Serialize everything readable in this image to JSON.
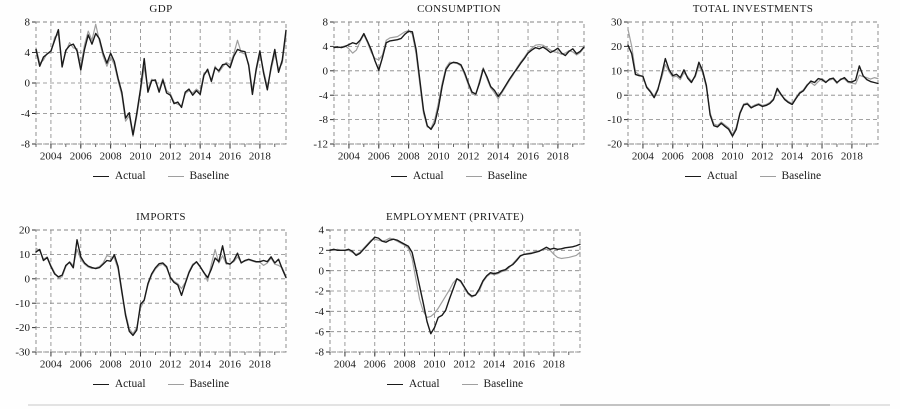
{
  "figure": {
    "background": "#fefefe",
    "accent_actual": "#1a1a1a",
    "accent_baseline": "#9f9f9f",
    "grid_style": "dashed"
  },
  "chart_data": [
    {
      "id": "gdp",
      "type": "line",
      "title": "GDP",
      "xlabel": "",
      "ylabel": "",
      "ylim": [
        -8,
        8
      ],
      "yticks": [
        8,
        4,
        0,
        -4,
        -8
      ],
      "xlim": [
        2003,
        2019.75
      ],
      "x_step_years": 0.25,
      "x_tick_years": [
        2004,
        2006,
        2008,
        2010,
        2012,
        2014,
        2016,
        2018
      ],
      "grid": "dashed",
      "legend_position": "bottom",
      "series": [
        {
          "name": "Actual",
          "color": "#1a1a1a",
          "values": [
            4.4,
            2.2,
            3.4,
            3.8,
            4.2,
            5.6,
            7.0,
            2.1,
            4.3,
            4.9,
            5.1,
            4.2,
            1.7,
            4.4,
            6.3,
            5.1,
            6.5,
            5.8,
            3.9,
            2.6,
            3.9,
            2.8,
            0.6,
            -1.2,
            -4.6,
            -3.9,
            -6.8,
            -4.0,
            -0.8,
            3.2,
            -1.2,
            0.3,
            0.4,
            -1.2,
            0.4,
            -1.3,
            -1.6,
            -2.7,
            -2.5,
            -3.2,
            -1.2,
            -0.8,
            -1.6,
            -1.0,
            -1.5,
            1.0,
            1.8,
            0.2,
            2.0,
            1.6,
            2.4,
            2.5,
            2.0,
            3.5,
            4.4,
            4.2,
            4.1,
            2.3,
            -1.5,
            1.8,
            4.2,
            1.3,
            -0.9,
            2.1,
            4.4,
            1.4,
            3.0,
            6.9
          ]
        },
        {
          "name": "Baseline",
          "color": "#9f9f9f",
          "values": [
            4.6,
            2.6,
            3.0,
            3.9,
            4.0,
            6.0,
            6.4,
            2.4,
            4.1,
            5.3,
            4.6,
            4.5,
            2.2,
            5.0,
            6.8,
            5.6,
            7.7,
            5.5,
            3.5,
            2.2,
            3.4,
            2.4,
            0.3,
            -1.6,
            -5.0,
            -4.3,
            -7.0,
            -4.4,
            -1.2,
            2.1,
            -0.8,
            0.5,
            0.2,
            -0.9,
            0.6,
            -1.0,
            -1.4,
            -2.5,
            -2.8,
            -3.0,
            -1.4,
            -1.0,
            -1.3,
            -0.8,
            -1.2,
            1.3,
            1.5,
            0.4,
            2.2,
            1.4,
            2.1,
            2.7,
            2.4,
            3.8,
            5.6,
            4.0,
            3.8,
            2.5,
            -0.9,
            1.5,
            3.8,
            1.6,
            -0.5,
            1.7,
            3.8,
            1.8,
            2.6,
            6.3
          ]
        }
      ]
    },
    {
      "id": "consumption",
      "type": "line",
      "title": "CONSUMPTION",
      "xlabel": "",
      "ylabel": "",
      "ylim": [
        -12,
        8
      ],
      "yticks": [
        8,
        4,
        0,
        -4,
        -8,
        -12
      ],
      "xlim": [
        2003,
        2019.75
      ],
      "x_step_years": 0.25,
      "x_tick_years": [
        2004,
        2006,
        2008,
        2010,
        2012,
        2014,
        2016,
        2018
      ],
      "grid": "dashed",
      "legend_position": "bottom",
      "series": [
        {
          "name": "Actual",
          "color": "#1a1a1a",
          "values": [
            3.8,
            3.9,
            3.8,
            4.0,
            4.3,
            4.6,
            4.4,
            5.0,
            6.1,
            4.8,
            3.4,
            1.6,
            0.1,
            2.2,
            4.6,
            4.9,
            5.0,
            5.1,
            5.3,
            6.0,
            6.5,
            6.4,
            3.5,
            -1.5,
            -6.5,
            -9.0,
            -9.6,
            -8.6,
            -6.0,
            -2.5,
            0.2,
            1.1,
            1.4,
            1.3,
            1.0,
            -0.3,
            -2.0,
            -3.5,
            -3.8,
            -2.0,
            0.3,
            -1.0,
            -2.6,
            -3.2,
            -4.2,
            -3.4,
            -2.4,
            -1.4,
            -0.5,
            0.3,
            1.2,
            2.0,
            2.9,
            3.4,
            3.8,
            3.6,
            3.9,
            3.5,
            3.0,
            3.3,
            3.7,
            2.9,
            2.5,
            3.2,
            3.6,
            2.8,
            3.2,
            3.9
          ]
        },
        {
          "name": "Baseline",
          "color": "#9f9f9f",
          "values": [
            3.9,
            3.8,
            3.9,
            4.1,
            3.6,
            2.9,
            3.4,
            4.8,
            5.9,
            4.6,
            3.0,
            2.0,
            1.8,
            2.6,
            5.0,
            5.4,
            5.5,
            5.6,
            6.0,
            6.4,
            6.6,
            6.0,
            2.8,
            -2.2,
            -7.0,
            -9.2,
            -9.4,
            -8.0,
            -5.2,
            -2.0,
            0.5,
            1.4,
            1.3,
            1.2,
            0.8,
            -0.6,
            -2.3,
            -3.8,
            -4.0,
            -1.6,
            0.5,
            -1.3,
            -2.8,
            -3.6,
            -4.6,
            -3.6,
            -2.6,
            -1.6,
            -0.7,
            0.5,
            1.4,
            2.2,
            3.1,
            3.7,
            4.2,
            4.3,
            4.2,
            3.8,
            3.4,
            3.1,
            3.0,
            2.7,
            2.9,
            3.3,
            3.1,
            2.6,
            3.0,
            3.8
          ]
        }
      ]
    },
    {
      "id": "total-investments",
      "type": "line",
      "title": "TOTAL INVESTMENTS",
      "xlabel": "",
      "ylabel": "",
      "ylim": [
        -20,
        30
      ],
      "yticks": [
        30,
        20,
        10,
        0,
        -10,
        -20
      ],
      "xlim": [
        2003,
        2019.75
      ],
      "x_step_years": 0.25,
      "x_tick_years": [
        2004,
        2006,
        2008,
        2010,
        2012,
        2014,
        2016,
        2018
      ],
      "grid": "dashed",
      "legend_position": "bottom",
      "series": [
        {
          "name": "Actual",
          "color": "#1a1a1a",
          "values": [
            20.5,
            17.0,
            8.5,
            8.0,
            7.8,
            3.2,
            1.4,
            -1.0,
            2.2,
            8.2,
            15.0,
            10.5,
            8.0,
            8.6,
            7.2,
            10.4,
            7.0,
            5.2,
            8.0,
            13.5,
            10.0,
            4.0,
            -8.0,
            -12.5,
            -13.0,
            -11.5,
            -12.8,
            -14.0,
            -16.8,
            -14.0,
            -7.5,
            -4.0,
            -3.6,
            -5.2,
            -4.4,
            -3.8,
            -4.6,
            -4.2,
            -3.4,
            -1.8,
            2.8,
            0.4,
            -1.8,
            -3.0,
            -3.8,
            -1.4,
            0.8,
            1.8,
            4.0,
            5.8,
            5.2,
            6.8,
            6.4,
            5.2,
            6.6,
            7.0,
            5.2,
            6.4,
            7.2,
            5.6,
            5.4,
            6.2,
            12.0,
            8.0,
            6.4,
            5.6,
            5.2,
            4.8
          ]
        },
        {
          "name": "Baseline",
          "color": "#9f9f9f",
          "values": [
            27.0,
            20.0,
            9.5,
            8.4,
            7.4,
            3.6,
            1.8,
            -0.4,
            2.8,
            7.0,
            12.6,
            9.6,
            7.4,
            7.8,
            6.4,
            9.2,
            7.6,
            5.8,
            7.4,
            12.0,
            9.2,
            3.2,
            -7.2,
            -11.8,
            -12.4,
            -11.0,
            -12.2,
            -13.4,
            -16.0,
            -13.2,
            -7.0,
            -3.6,
            -3.2,
            -4.8,
            -4.0,
            -3.4,
            -4.2,
            -3.8,
            -3.0,
            -1.4,
            2.2,
            0.0,
            -1.4,
            -2.6,
            -3.4,
            -1.0,
            1.2,
            2.2,
            4.4,
            5.2,
            4.0,
            5.6,
            6.8,
            5.6,
            6.2,
            6.6,
            4.8,
            6.8,
            6.6,
            5.2,
            5.0,
            4.6,
            8.2,
            7.6,
            7.2,
            6.6,
            7.2,
            6.8
          ]
        }
      ]
    },
    {
      "id": "imports",
      "type": "line",
      "title": "IMPORTS",
      "xlabel": "",
      "ylabel": "",
      "ylim": [
        -30,
        20
      ],
      "yticks": [
        20,
        10,
        0,
        -10,
        -20,
        -30
      ],
      "xlim": [
        2003,
        2019.75
      ],
      "x_step_years": 0.25,
      "x_tick_years": [
        2004,
        2006,
        2008,
        2010,
        2012,
        2014,
        2016,
        2018
      ],
      "grid": "dashed",
      "legend_position": "bottom",
      "series": [
        {
          "name": "Actual",
          "color": "#1a1a1a",
          "values": [
            11.0,
            12.0,
            7.5,
            8.7,
            5.0,
            2.0,
            0.8,
            1.5,
            5.5,
            6.8,
            4.5,
            16.0,
            9.0,
            6.5,
            5.2,
            4.6,
            4.2,
            4.6,
            6.0,
            7.5,
            7.2,
            9.8,
            5.0,
            -5.0,
            -15.0,
            -21.5,
            -23.2,
            -21.0,
            -10.5,
            -8.7,
            -2.0,
            2.0,
            4.5,
            6.2,
            6.5,
            5.0,
            0.5,
            -1.5,
            -2.5,
            -6.8,
            -2.0,
            2.5,
            5.5,
            7.0,
            5.0,
            2.5,
            0.5,
            4.0,
            8.5,
            7.0,
            13.5,
            6.5,
            6.0,
            7.5,
            10.5,
            6.5,
            7.5,
            8.0,
            7.5,
            7.0,
            7.0,
            7.5,
            7.0,
            9.0,
            6.5,
            8.0,
            4.0,
            0.5
          ]
        },
        {
          "name": "Baseline",
          "color": "#9f9f9f",
          "values": [
            12.5,
            11.5,
            8.0,
            9.0,
            5.5,
            2.5,
            0.3,
            0.8,
            5.0,
            7.0,
            5.5,
            12.0,
            8.0,
            6.0,
            4.8,
            4.2,
            4.5,
            5.0,
            6.5,
            9.5,
            9.0,
            8.5,
            4.0,
            -6.0,
            -14.0,
            -20.5,
            -22.5,
            -20.0,
            -12.0,
            -9.0,
            -2.5,
            1.5,
            4.0,
            5.5,
            6.0,
            4.5,
            0.8,
            -1.0,
            -2.0,
            -4.0,
            -1.5,
            3.0,
            6.0,
            6.8,
            4.8,
            2.8,
            -1.0,
            6.0,
            12.0,
            6.5,
            9.5,
            6.0,
            6.2,
            7.0,
            9.0,
            6.8,
            7.2,
            7.8,
            7.2,
            6.8,
            6.8,
            5.5,
            6.5,
            8.5,
            6.0,
            5.5,
            4.5,
            1.0
          ]
        }
      ]
    },
    {
      "id": "employment-private",
      "type": "line",
      "title": "EMPLOYMENT (PRIVATE)",
      "xlabel": "",
      "ylabel": "",
      "ylim": [
        -8,
        4
      ],
      "yticks": [
        4,
        2,
        0,
        -2,
        -4,
        -6,
        -8
      ],
      "xlim": [
        2003,
        2019.75
      ],
      "x_step_years": 0.25,
      "x_tick_years": [
        2004,
        2006,
        2008,
        2010,
        2012,
        2014,
        2016,
        2018
      ],
      "grid": "dashed",
      "legend_position": "bottom",
      "series": [
        {
          "name": "Actual",
          "color": "#1a1a1a",
          "values": [
            2.0,
            2.1,
            2.0,
            2.0,
            2.0,
            2.1,
            1.9,
            1.5,
            1.7,
            2.1,
            2.5,
            2.9,
            3.3,
            3.2,
            2.9,
            2.8,
            3.0,
            3.1,
            3.0,
            2.8,
            2.6,
            2.4,
            1.8,
            0.2,
            -1.5,
            -3.2,
            -5.0,
            -6.2,
            -5.6,
            -4.6,
            -4.4,
            -3.9,
            -2.8,
            -1.8,
            -0.8,
            -1.0,
            -1.6,
            -2.2,
            -2.5,
            -2.4,
            -1.8,
            -1.0,
            -0.5,
            -0.2,
            -0.3,
            -0.2,
            0.0,
            0.1,
            0.4,
            0.6,
            1.0,
            1.45,
            1.6,
            1.65,
            1.7,
            1.8,
            1.9,
            2.1,
            2.3,
            2.1,
            2.2,
            2.1,
            2.15,
            2.25,
            2.3,
            2.35,
            2.45,
            2.6
          ]
        },
        {
          "name": "Baseline",
          "color": "#9f9f9f",
          "values": [
            2.1,
            2.0,
            2.1,
            2.0,
            2.0,
            2.0,
            1.8,
            1.6,
            1.8,
            2.2,
            2.6,
            3.0,
            3.1,
            3.0,
            2.9,
            3.0,
            3.2,
            3.1,
            2.9,
            2.7,
            2.5,
            2.2,
            1.2,
            -0.8,
            -2.8,
            -4.0,
            -4.6,
            -4.5,
            -4.2,
            -3.7,
            -3.1,
            -2.5,
            -1.9,
            -1.2,
            -0.8,
            -1.1,
            -1.7,
            -2.3,
            -2.6,
            -2.4,
            -2.0,
            -1.1,
            -0.6,
            -0.3,
            -0.4,
            -0.3,
            -0.1,
            0.0,
            0.3,
            0.7,
            1.1,
            1.5,
            1.6,
            1.7,
            1.75,
            1.9,
            1.95,
            2.05,
            2.1,
            2.0,
            1.6,
            1.3,
            1.2,
            1.25,
            1.3,
            1.4,
            1.5,
            1.8
          ]
        }
      ]
    }
  ]
}
